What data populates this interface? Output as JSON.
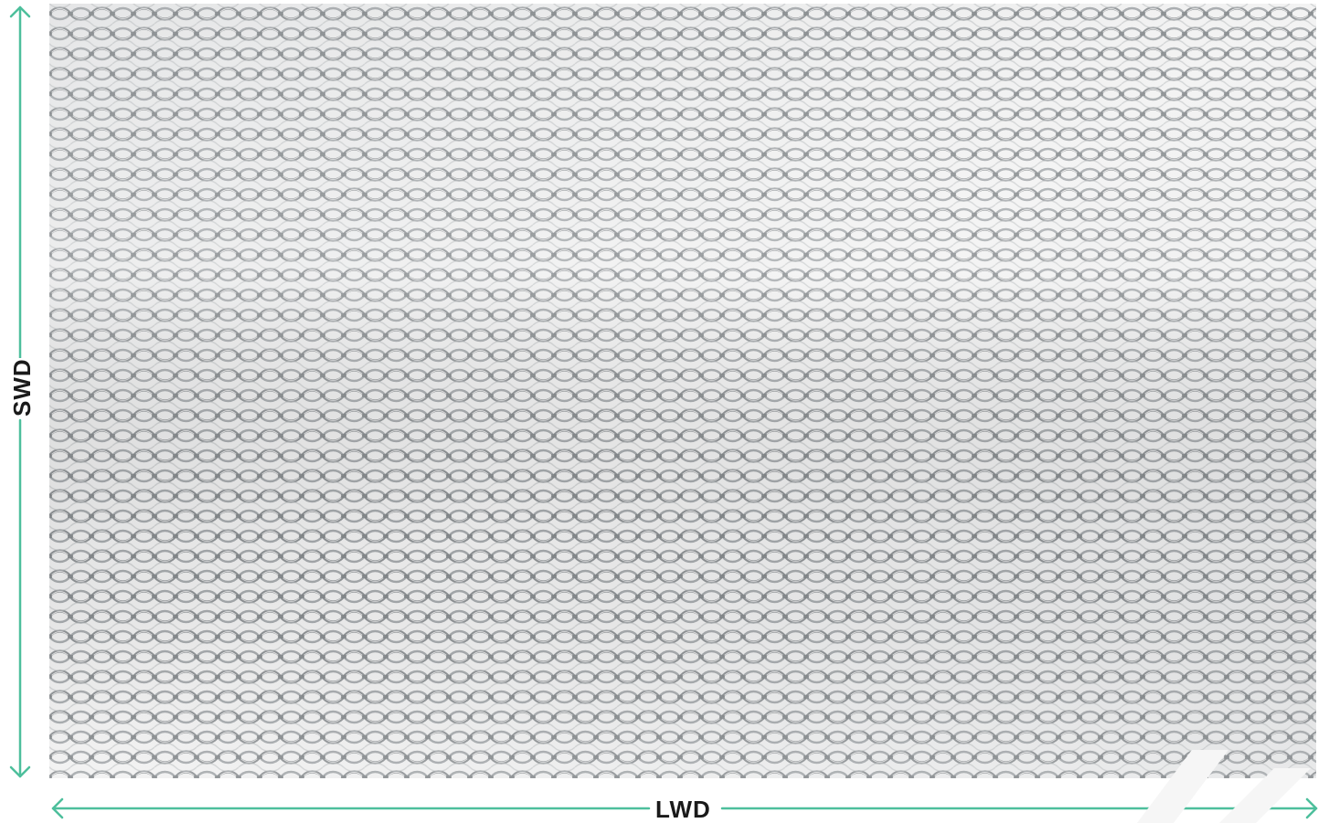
{
  "image": {
    "subject": "expanded-metal-mesh",
    "mesh_color": "#a9adb0",
    "background_color": "#ececec"
  },
  "dimensions": {
    "long_way": {
      "label": "LWD",
      "color": "#4dbf9c"
    },
    "short_way": {
      "label": "SWD",
      "color": "#4dbf9c"
    }
  }
}
